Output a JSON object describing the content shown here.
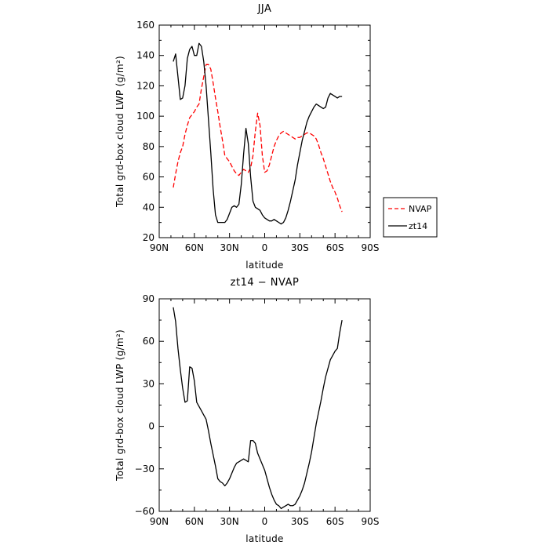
{
  "chart_data": [
    {
      "type": "line",
      "title": "JJA",
      "xlabel": "latitude",
      "ylabel": "Total grd-box cloud LWP (g/m²)",
      "xlim": [
        90,
        -90
      ],
      "ylim": [
        20,
        160
      ],
      "x_ticks": [
        90,
        60,
        30,
        0,
        -30,
        -60,
        -90
      ],
      "x_tick_labels": [
        "90N",
        "60N",
        "30N",
        "0",
        "30S",
        "60S",
        "90S"
      ],
      "y_ticks": [
        20,
        40,
        60,
        80,
        100,
        120,
        140,
        160
      ],
      "y_tick_labels": [
        "20",
        "40",
        "60",
        "80",
        "100",
        "120",
        "140",
        "160"
      ],
      "legend_position": "outside-right",
      "series": [
        {
          "name": "NVAP",
          "color": "#ff0000",
          "style": "dashed",
          "x": [
            78,
            76,
            74,
            72,
            70,
            68,
            66,
            64,
            62,
            60,
            58,
            56,
            54,
            52,
            50,
            48,
            46,
            44,
            42,
            40,
            38,
            36,
            34,
            32,
            30,
            28,
            26,
            24,
            22,
            20,
            18,
            16,
            14,
            12,
            10,
            8,
            6,
            4,
            2,
            0,
            -2,
            -4,
            -6,
            -8,
            -10,
            -12,
            -14,
            -16,
            -18,
            -20,
            -22,
            -24,
            -26,
            -28,
            -30,
            -32,
            -34,
            -36,
            -38,
            -40,
            -42,
            -44,
            -46,
            -48,
            -50,
            -52,
            -54,
            -56,
            -58,
            -60,
            -62,
            -64,
            -66
          ],
          "values": [
            53,
            62,
            70,
            76,
            80,
            88,
            94,
            99,
            101,
            103,
            106,
            108,
            118,
            126,
            134,
            134,
            131,
            122,
            112,
            103,
            93,
            84,
            74,
            72,
            70,
            67,
            64,
            62,
            61,
            63,
            65,
            64,
            63,
            66,
            74,
            90,
            102,
            94,
            74,
            63,
            64,
            68,
            74,
            80,
            84,
            87,
            89,
            90,
            89,
            88,
            87,
            86,
            85,
            86,
            86,
            87,
            88,
            89,
            89,
            88,
            87,
            85,
            81,
            76,
            72,
            67,
            62,
            57,
            53,
            50,
            46,
            41,
            37
          ]
        },
        {
          "name": "zt14",
          "color": "#000000",
          "style": "solid",
          "x": [
            78,
            76,
            74,
            72,
            70,
            68,
            66,
            64,
            62,
            60,
            58,
            56,
            54,
            52,
            50,
            48,
            46,
            44,
            42,
            40,
            38,
            36,
            34,
            32,
            30,
            28,
            26,
            24,
            22,
            20,
            18,
            16,
            14,
            12,
            10,
            8,
            6,
            4,
            2,
            0,
            -2,
            -4,
            -6,
            -8,
            -10,
            -12,
            -14,
            -16,
            -18,
            -20,
            -22,
            -24,
            -26,
            -28,
            -30,
            -32,
            -34,
            -36,
            -38,
            -40,
            -42,
            -44,
            -46,
            -48,
            -50,
            -52,
            -54,
            -56,
            -58,
            -60,
            -62,
            -64,
            -66
          ],
          "values": [
            136,
            141,
            126,
            111,
            112,
            120,
            138,
            144,
            146,
            140,
            140,
            148,
            146,
            136,
            120,
            98,
            76,
            52,
            35,
            30,
            30,
            30,
            30,
            32,
            36,
            40,
            41,
            40,
            42,
            55,
            75,
            92,
            82,
            60,
            44,
            40,
            39,
            38,
            35,
            33,
            32,
            31,
            31,
            32,
            31,
            30,
            29,
            30,
            33,
            38,
            44,
            51,
            58,
            68,
            76,
            84,
            90,
            96,
            100,
            103,
            106,
            108,
            107,
            106,
            105,
            106,
            112,
            115,
            114,
            113,
            112,
            113,
            113
          ]
        }
      ]
    },
    {
      "type": "line",
      "title": "zt14 − NVAP",
      "xlabel": "latitude",
      "ylabel": "Total grd-box cloud LWP (g/m²)",
      "xlim": [
        90,
        -90
      ],
      "ylim": [
        -60,
        90
      ],
      "x_ticks": [
        90,
        60,
        30,
        0,
        -30,
        -60,
        -90
      ],
      "x_tick_labels": [
        "90N",
        "60N",
        "30N",
        "0",
        "30S",
        "60S",
        "90S"
      ],
      "y_ticks": [
        -60,
        -30,
        0,
        30,
        60,
        90
      ],
      "y_tick_labels": [
        "−60",
        "−30",
        "0",
        "30",
        "60",
        "90"
      ],
      "series": [
        {
          "color": "#000000",
          "style": "solid",
          "x": [
            78,
            76,
            74,
            72,
            70,
            68,
            66,
            64,
            62,
            60,
            58,
            56,
            54,
            52,
            50,
            48,
            46,
            44,
            42,
            40,
            38,
            36,
            34,
            32,
            30,
            28,
            26,
            24,
            22,
            20,
            18,
            16,
            14,
            12,
            10,
            8,
            6,
            4,
            2,
            0,
            -2,
            -4,
            -6,
            -8,
            -10,
            -12,
            -14,
            -16,
            -18,
            -20,
            -22,
            -24,
            -26,
            -28,
            -30,
            -32,
            -34,
            -36,
            -38,
            -40,
            -42,
            -44,
            -46,
            -48,
            -50,
            -52,
            -54,
            -56,
            -58,
            -60,
            -62,
            -64,
            -66
          ],
          "values": [
            84,
            74,
            55,
            40,
            27,
            17,
            18,
            42,
            41,
            32,
            17,
            14,
            11,
            8,
            5,
            -3,
            -12,
            -20,
            -28,
            -37,
            -39,
            -40,
            -42,
            -40,
            -37,
            -33,
            -29,
            -26,
            -25,
            -24,
            -23,
            -24,
            -25,
            -10,
            -10,
            -12,
            -19,
            -23,
            -27,
            -31,
            -37,
            -43,
            -48,
            -52,
            -55,
            -56,
            -58,
            -57,
            -56,
            -55,
            -56,
            -56,
            -55,
            -52,
            -49,
            -45,
            -40,
            -33,
            -26,
            -18,
            -8,
            2,
            10,
            18,
            27,
            35,
            41,
            47,
            50,
            53,
            55,
            66,
            75
          ]
        }
      ]
    }
  ]
}
